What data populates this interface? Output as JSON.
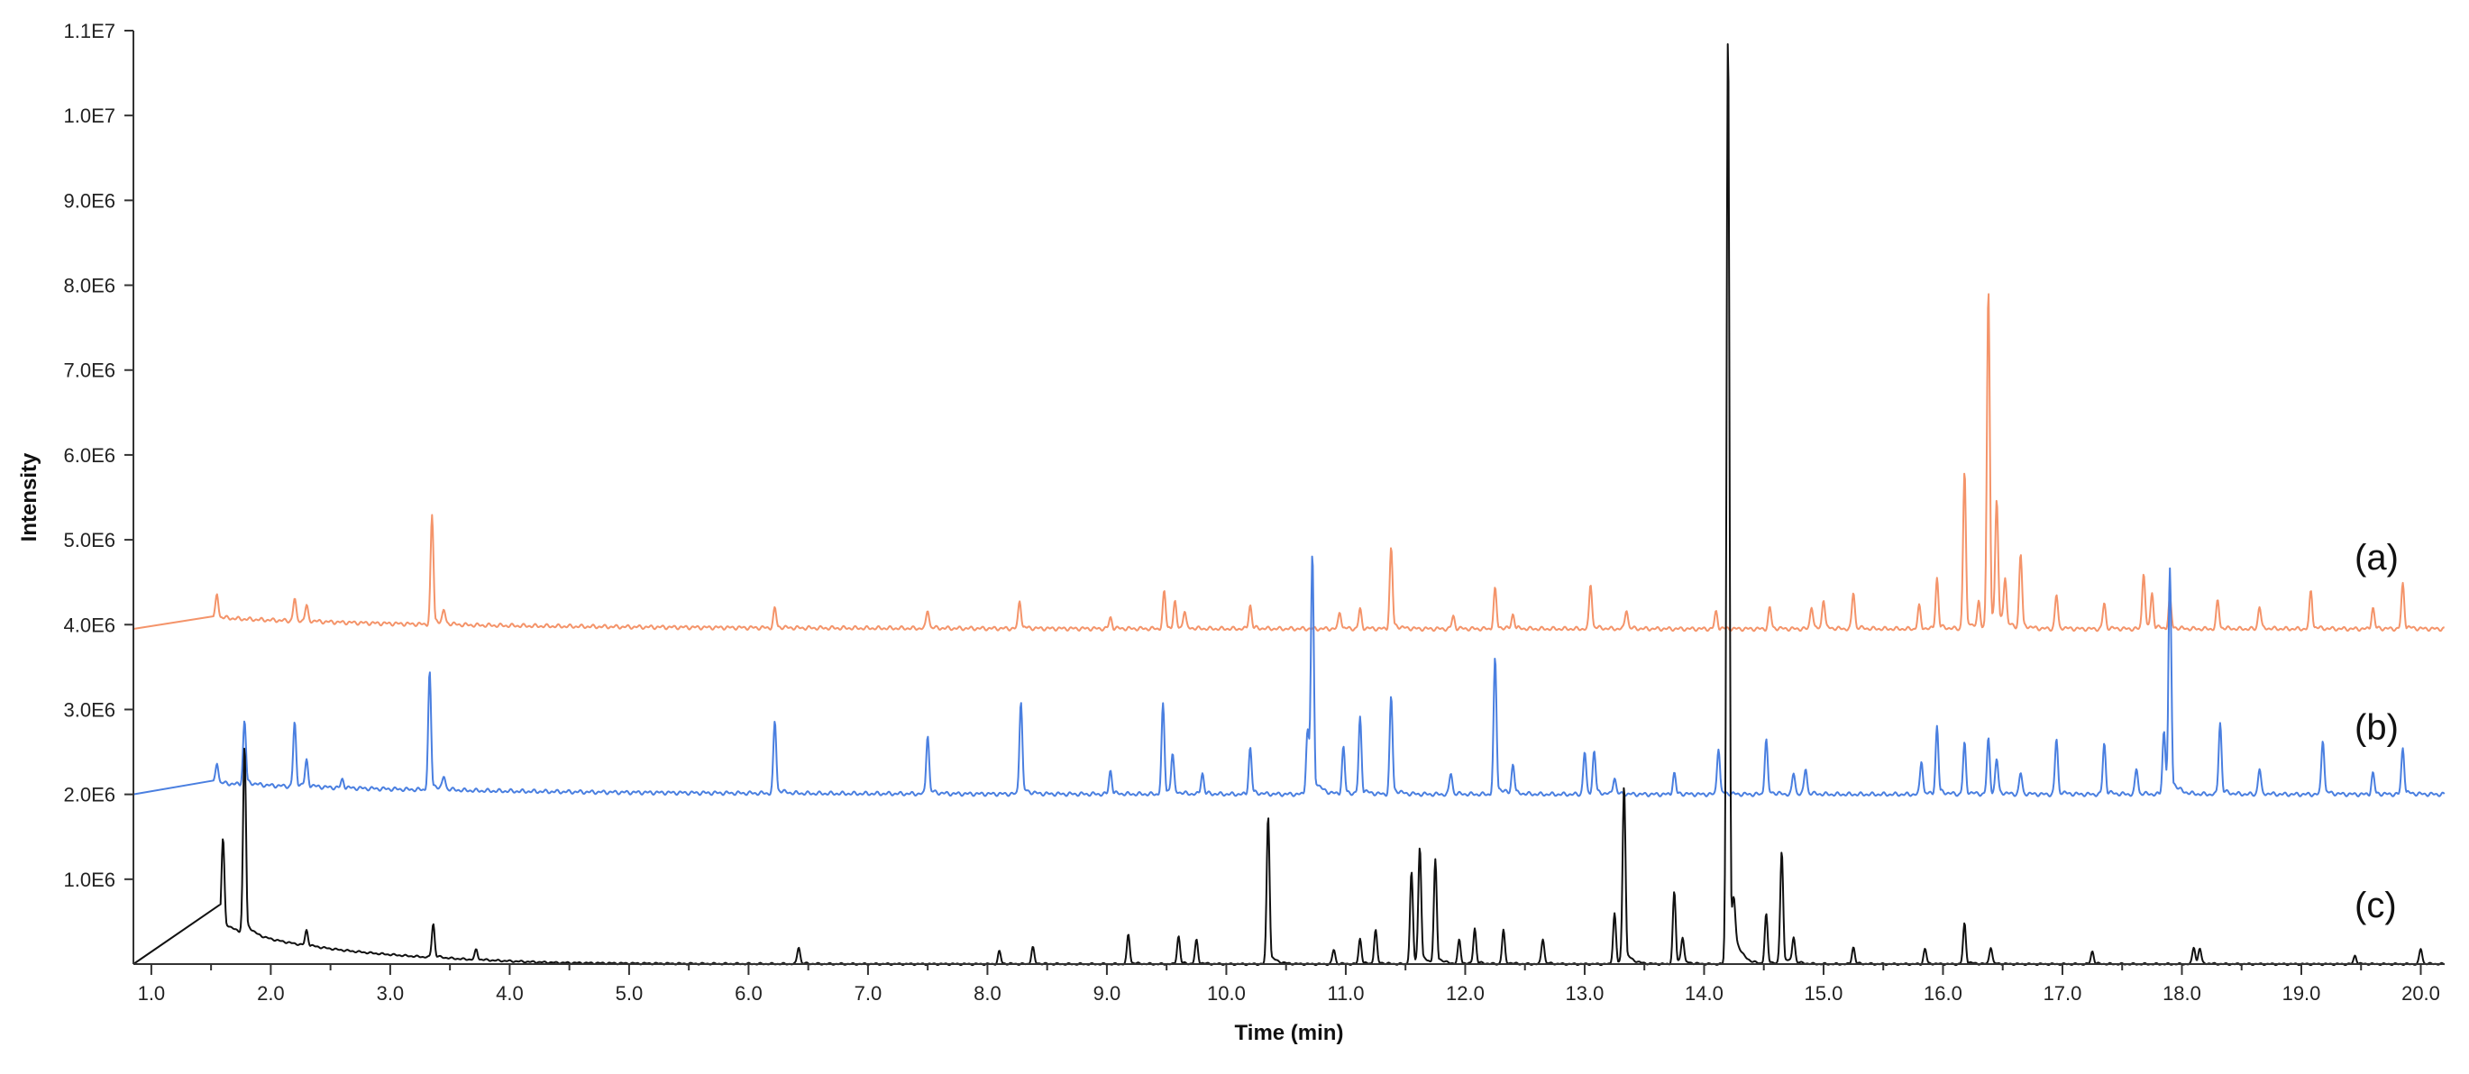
{
  "chart_data": {
    "type": "line",
    "title": "",
    "xlabel": "Time (min)",
    "ylabel": "Intensity",
    "xlim": [
      0.85,
      20.2
    ],
    "ylim": [
      0,
      11000000
    ],
    "grid": false,
    "x_ticks": [
      {
        "value": 1.0,
        "label": "1.0"
      },
      {
        "value": 2.0,
        "label": "2.0"
      },
      {
        "value": 3.0,
        "label": "3.0"
      },
      {
        "value": 4.0,
        "label": "4.0"
      },
      {
        "value": 5.0,
        "label": "5.0"
      },
      {
        "value": 6.0,
        "label": "6.0"
      },
      {
        "value": 7.0,
        "label": "7.0"
      },
      {
        "value": 8.0,
        "label": "8.0"
      },
      {
        "value": 9.0,
        "label": "9.0"
      },
      {
        "value": 10.0,
        "label": "10.0"
      },
      {
        "value": 11.0,
        "label": "11.0"
      },
      {
        "value": 12.0,
        "label": "12.0"
      },
      {
        "value": 13.0,
        "label": "13.0"
      },
      {
        "value": 14.0,
        "label": "14.0"
      },
      {
        "value": 15.0,
        "label": "15.0"
      },
      {
        "value": 16.0,
        "label": "16.0"
      },
      {
        "value": 17.0,
        "label": "17.0"
      },
      {
        "value": 18.0,
        "label": "18.0"
      },
      {
        "value": 19.0,
        "label": "19.0"
      },
      {
        "value": 20.0,
        "label": "20.0"
      }
    ],
    "y_ticks": [
      {
        "value": 1000000,
        "label": "1.0E6"
      },
      {
        "value": 2000000,
        "label": "2.0E6"
      },
      {
        "value": 3000000,
        "label": "3.0E6"
      },
      {
        "value": 4000000,
        "label": "4.0E6"
      },
      {
        "value": 5000000,
        "label": "5.0E6"
      },
      {
        "value": 6000000,
        "label": "6.0E6"
      },
      {
        "value": 7000000,
        "label": "7.0E6"
      },
      {
        "value": 8000000,
        "label": "8.0E6"
      },
      {
        "value": 9000000,
        "label": "9.0E6"
      },
      {
        "value": 10000000,
        "label": "1.0E7"
      },
      {
        "value": 11000000,
        "label": "1.1E7"
      }
    ],
    "series": [
      {
        "label": "(a)",
        "color": "#f4946a",
        "label_y": 4800000,
        "baseline": 3950000,
        "start": 1.52,
        "peaks": [
          [
            1.55,
            4230000
          ],
          [
            2.2,
            4210000
          ],
          [
            2.3,
            4130000
          ],
          [
            3.35,
            5230000
          ],
          [
            3.45,
            4100000
          ],
          [
            6.22,
            4180000
          ],
          [
            7.5,
            4170000
          ],
          [
            8.27,
            4280000
          ],
          [
            9.03,
            4080000
          ],
          [
            9.48,
            4380000
          ],
          [
            9.57,
            4250000
          ],
          [
            9.65,
            4150000
          ],
          [
            10.2,
            4230000
          ],
          [
            10.95,
            4150000
          ],
          [
            11.12,
            4180000
          ],
          [
            11.38,
            4900000
          ],
          [
            11.9,
            4100000
          ],
          [
            12.25,
            4420000
          ],
          [
            12.4,
            4120000
          ],
          [
            13.05,
            4480000
          ],
          [
            13.35,
            4180000
          ],
          [
            14.1,
            4150000
          ],
          [
            14.55,
            4200000
          ],
          [
            14.9,
            4220000
          ],
          [
            15.0,
            4300000
          ],
          [
            15.25,
            4380000
          ],
          [
            15.8,
            4220000
          ],
          [
            15.95,
            4550000
          ],
          [
            16.18,
            5800000
          ],
          [
            16.3,
            4250000
          ],
          [
            16.38,
            7920000
          ],
          [
            16.45,
            5370000
          ],
          [
            16.52,
            4500000
          ],
          [
            16.65,
            4820000
          ],
          [
            16.95,
            4350000
          ],
          [
            17.35,
            4250000
          ],
          [
            17.68,
            4620000
          ],
          [
            17.75,
            4350000
          ],
          [
            17.9,
            4300000
          ],
          [
            18.3,
            4280000
          ],
          [
            18.65,
            4220000
          ],
          [
            19.08,
            4400000
          ],
          [
            19.6,
            4200000
          ],
          [
            19.85,
            4480000
          ]
        ]
      },
      {
        "label": "(b)",
        "color": "#4a7fe0",
        "label_y": 2800000,
        "baseline": 2000000,
        "start": 1.52,
        "peaks": [
          [
            1.55,
            2250000
          ],
          [
            1.78,
            2750000
          ],
          [
            2.2,
            2750000
          ],
          [
            2.3,
            2300000
          ],
          [
            2.6,
            2100000
          ],
          [
            3.33,
            3380000
          ],
          [
            3.45,
            2150000
          ],
          [
            6.22,
            2850000
          ],
          [
            7.5,
            2700000
          ],
          [
            8.28,
            3100000
          ],
          [
            9.03,
            2280000
          ],
          [
            9.47,
            3050000
          ],
          [
            9.55,
            2450000
          ],
          [
            9.8,
            2250000
          ],
          [
            10.2,
            2550000
          ],
          [
            10.68,
            2750000
          ],
          [
            10.72,
            4800000
          ],
          [
            10.98,
            2550000
          ],
          [
            11.12,
            2900000
          ],
          [
            11.38,
            3150000
          ],
          [
            11.88,
            2250000
          ],
          [
            12.25,
            3600000
          ],
          [
            12.4,
            2350000
          ],
          [
            13.0,
            2500000
          ],
          [
            13.08,
            2500000
          ],
          [
            13.25,
            2200000
          ],
          [
            13.75,
            2250000
          ],
          [
            14.12,
            2550000
          ],
          [
            14.52,
            2650000
          ],
          [
            14.75,
            2250000
          ],
          [
            14.85,
            2300000
          ],
          [
            15.82,
            2400000
          ],
          [
            15.95,
            2800000
          ],
          [
            16.18,
            2600000
          ],
          [
            16.38,
            2650000
          ],
          [
            16.45,
            2400000
          ],
          [
            16.65,
            2250000
          ],
          [
            16.95,
            2650000
          ],
          [
            17.35,
            2600000
          ],
          [
            17.62,
            2300000
          ],
          [
            17.85,
            2750000
          ],
          [
            17.9,
            4620000
          ],
          [
            18.32,
            2850000
          ],
          [
            18.65,
            2300000
          ],
          [
            19.18,
            2650000
          ],
          [
            19.6,
            2250000
          ],
          [
            19.85,
            2550000
          ]
        ]
      },
      {
        "label": "(c)",
        "color": "#111111",
        "label_y": 700000,
        "baseline": 0,
        "start": 1.58,
        "peaks": [
          [
            1.6,
            1050000
          ],
          [
            1.78,
            2200000
          ],
          [
            2.3,
            180000
          ],
          [
            3.36,
            400000
          ],
          [
            3.72,
            120000
          ],
          [
            6.42,
            200000
          ],
          [
            8.1,
            150000
          ],
          [
            8.38,
            200000
          ],
          [
            9.18,
            350000
          ],
          [
            9.6,
            330000
          ],
          [
            9.75,
            280000
          ],
          [
            10.35,
            1750000
          ],
          [
            10.9,
            170000
          ],
          [
            11.12,
            300000
          ],
          [
            11.25,
            400000
          ],
          [
            11.55,
            1080000
          ],
          [
            11.62,
            1360000
          ],
          [
            11.75,
            1210000
          ],
          [
            11.95,
            280000
          ],
          [
            12.08,
            420000
          ],
          [
            12.32,
            400000
          ],
          [
            12.65,
            300000
          ],
          [
            13.25,
            600000
          ],
          [
            13.33,
            2100000
          ],
          [
            13.75,
            850000
          ],
          [
            13.82,
            300000
          ],
          [
            14.2,
            11000000
          ],
          [
            14.25,
            400000
          ],
          [
            14.52,
            580000
          ],
          [
            14.65,
            1330000
          ],
          [
            14.75,
            300000
          ],
          [
            15.25,
            200000
          ],
          [
            15.85,
            180000
          ],
          [
            16.18,
            480000
          ],
          [
            16.4,
            200000
          ],
          [
            17.25,
            150000
          ],
          [
            18.1,
            200000
          ],
          [
            18.15,
            180000
          ],
          [
            19.45,
            100000
          ],
          [
            20.0,
            180000
          ]
        ]
      }
    ]
  }
}
